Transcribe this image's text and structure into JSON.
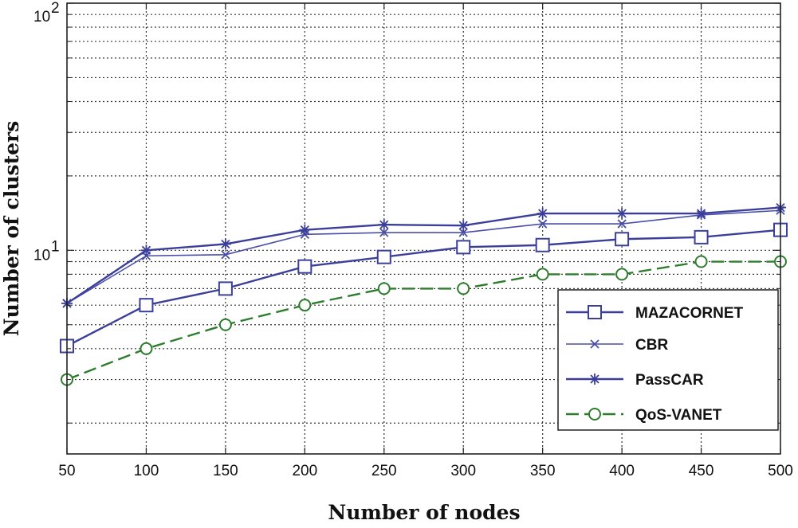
{
  "chart_data": {
    "type": "line",
    "xlabel": "Number of nodes",
    "ylabel": "Number of clusters",
    "x": [
      50,
      100,
      150,
      200,
      250,
      300,
      350,
      400,
      450,
      500
    ],
    "x_ticks": [
      "50",
      "100",
      "150",
      "200",
      "250",
      "300",
      "350",
      "400",
      "450",
      "500"
    ],
    "xlim": [
      50,
      500
    ],
    "ylim": [
      1.5,
      100
    ],
    "y_scale": "log",
    "y_ticks": [
      {
        "value": 10,
        "base": "10",
        "exp": "1"
      },
      {
        "value": 100,
        "base": "10",
        "exp": "2"
      }
    ],
    "grid": true,
    "legend_position": "bottom-right",
    "series": [
      {
        "name": "MAZACORNET",
        "marker": "square",
        "line": "solid",
        "color": "#3b3f9a",
        "values": [
          4.1,
          6.0,
          7.0,
          8.6,
          9.4,
          10.3,
          10.5,
          11.1,
          11.3,
          12.1
        ]
      },
      {
        "name": "CBR",
        "marker": "x",
        "line": "solid",
        "color": "#4a4ea8",
        "values": [
          6.1,
          9.5,
          9.6,
          11.6,
          11.8,
          11.8,
          12.8,
          12.8,
          13.9,
          14.5
        ]
      },
      {
        "name": "PassCAR",
        "marker": "star",
        "line": "solid",
        "color": "#3b3f9a",
        "values": [
          6.1,
          10.0,
          10.6,
          12.1,
          12.7,
          12.6,
          14.1,
          14.1,
          14.1,
          14.9
        ]
      },
      {
        "name": "QoS-VANET",
        "marker": "circle",
        "line": "dashed",
        "color": "#2e7d2e",
        "values": [
          3.0,
          4.0,
          5.0,
          6.0,
          7.0,
          7.0,
          8.0,
          8.0,
          9.0,
          9.0
        ]
      }
    ]
  }
}
